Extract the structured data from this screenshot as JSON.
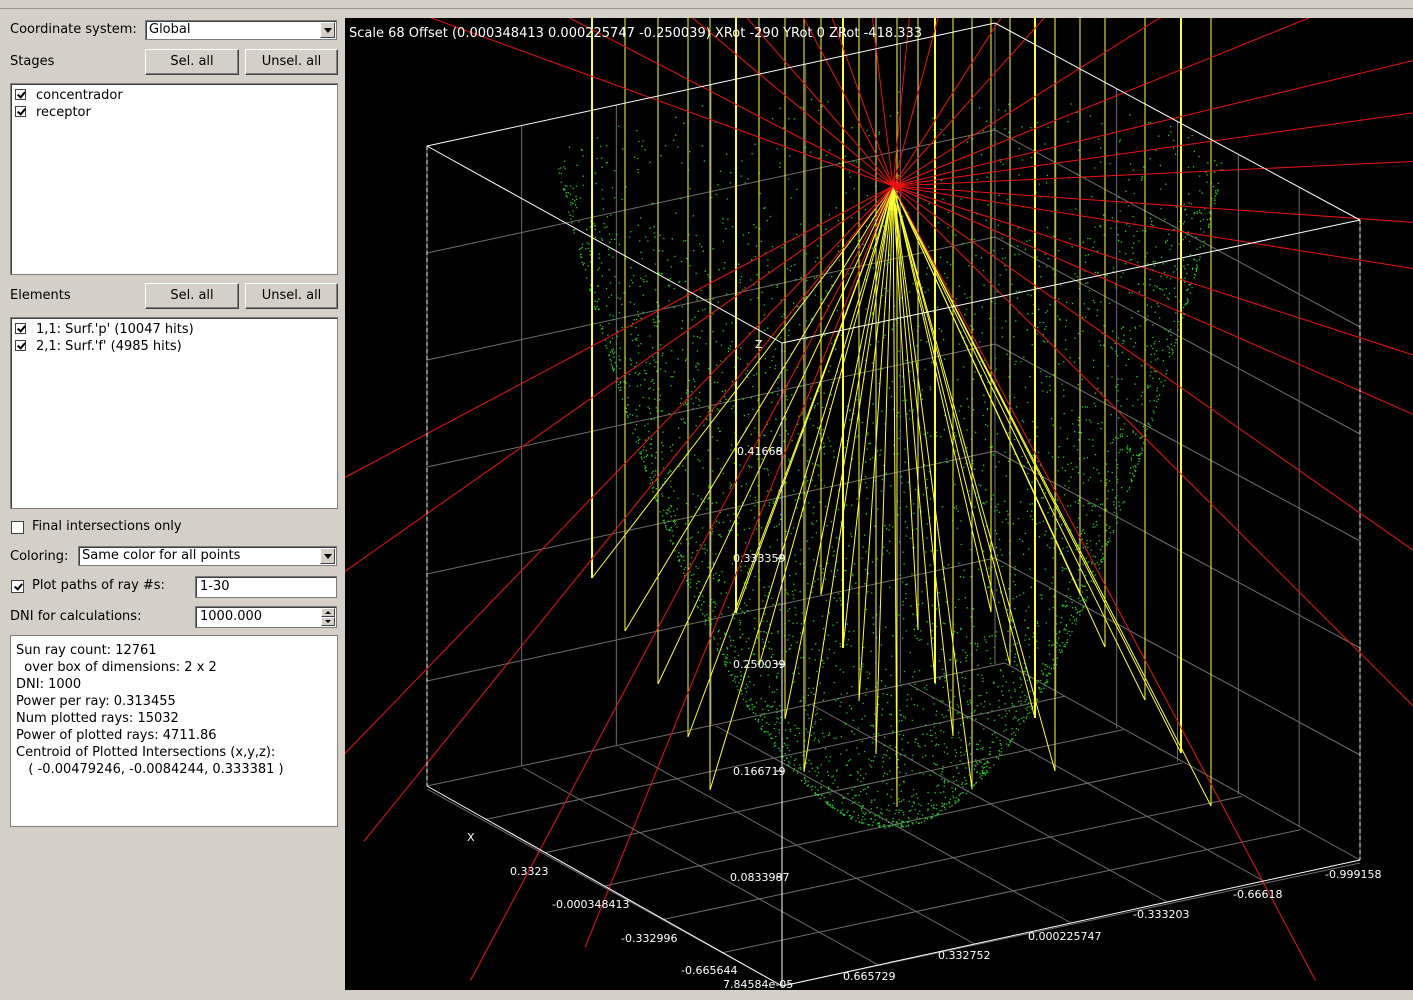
{
  "panel": {
    "coord_label": "Coordinate system:",
    "coord_value": "Global",
    "stages_label": "Stages",
    "sel_all": "Sel. all",
    "unsel_all": "Unsel. all",
    "stages": [
      "concentrador",
      "receptor"
    ],
    "elements_label": "Elements",
    "elements": [
      "1,1: Surf.'p' (10047 hits)",
      "2,1: Surf.'f' (4985 hits)"
    ],
    "final_only_label": "Final intersections only",
    "coloring_label": "Coloring:",
    "coloring_value": "Same color for all points",
    "plot_paths_label": "Plot paths of ray #s:",
    "plot_paths_value": "1-30",
    "dni_label": "DNI for calculations:",
    "dni_value": "1000.000",
    "info_lines": [
      "Sun ray count: 12761",
      "  over box of dimensions: 2 x 2",
      "DNI: 1000",
      "Power per ray: 0.313455",
      "Num plotted rays: 15032",
      "Power of plotted rays: 4711.86",
      "Centroid of Plotted Intersections (x,y,z):",
      "   ( -0.00479246, -0.0084244, 0.333381 )"
    ]
  },
  "view": {
    "header": "Scale 68 Offset (0.000348413 0.000225747 -0.250039) XRot -290 YRot 0 ZRot -418.333",
    "axis_z_label": "Z",
    "axis_x_label": "X",
    "z_ticks": [
      "0.41668",
      "0.333359",
      "0.250039",
      "0.166719",
      "0.0833987",
      "7.84584e-05"
    ],
    "x_ticks": [
      "0.3323",
      "-0.000348413",
      "-0.332996",
      "-0.665644"
    ],
    "y_ticks": [
      "0.665729",
      "0.332752",
      "0.000225747",
      "-0.333203",
      "-0.66618",
      "-0.999158"
    ],
    "colors": {
      "background": "#000000",
      "points": "#22cc22",
      "incoming_rays": "#ffff33",
      "reflected_rays": "#ee1111",
      "box": "#ffffff"
    }
  }
}
